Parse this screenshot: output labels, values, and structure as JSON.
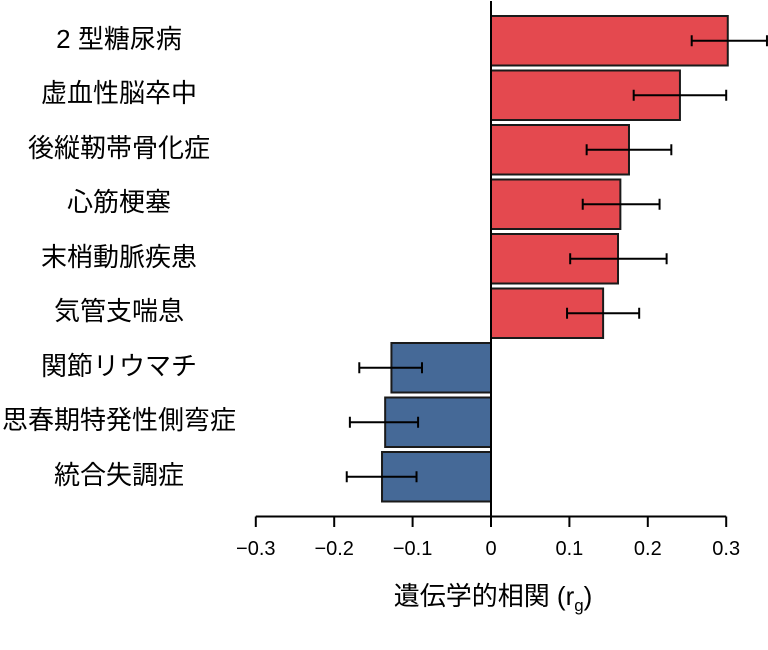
{
  "chart_data": {
    "type": "bar",
    "orientation": "horizontal",
    "xlabel_prefix": "遺伝学的相関 (r",
    "xlabel_sub": "g",
    "xlabel_suffix": ")",
    "categories": [
      "2 型糖尿病",
      "虚血性脳卒中",
      "後縦靭帯骨化症",
      "心筋梗塞",
      "末梢動脈疾患",
      "気管支喘息",
      "関節リウマチ",
      "思春期特発性側弯症",
      "統合失調症"
    ],
    "values": [
      0.302,
      0.241,
      0.176,
      0.165,
      0.162,
      0.143,
      -0.127,
      -0.135,
      -0.139
    ],
    "ci_low": [
      0.256,
      0.182,
      0.122,
      0.117,
      0.101,
      0.097,
      -0.168,
      -0.18,
      -0.184
    ],
    "ci_high": [
      0.352,
      0.3,
      0.23,
      0.215,
      0.224,
      0.189,
      -0.088,
      -0.093,
      -0.095
    ],
    "x_ticks": [
      -0.3,
      -0.2,
      -0.1,
      0,
      0.1,
      0.2,
      0.3
    ],
    "x_tick_labels": [
      "−0.3",
      "−0.2",
      "−0.1",
      "0",
      "0.1",
      "0.2",
      "0.3"
    ],
    "xlim": [
      -0.3,
      0.3
    ],
    "grid": false,
    "legend": null,
    "colors": {
      "positive_bar": "#E4494F",
      "negative_bar": "#456997",
      "bar_outline": "#1A1A1A",
      "error_bar": "#000000",
      "axis": "#000000",
      "text": "#000000"
    }
  }
}
